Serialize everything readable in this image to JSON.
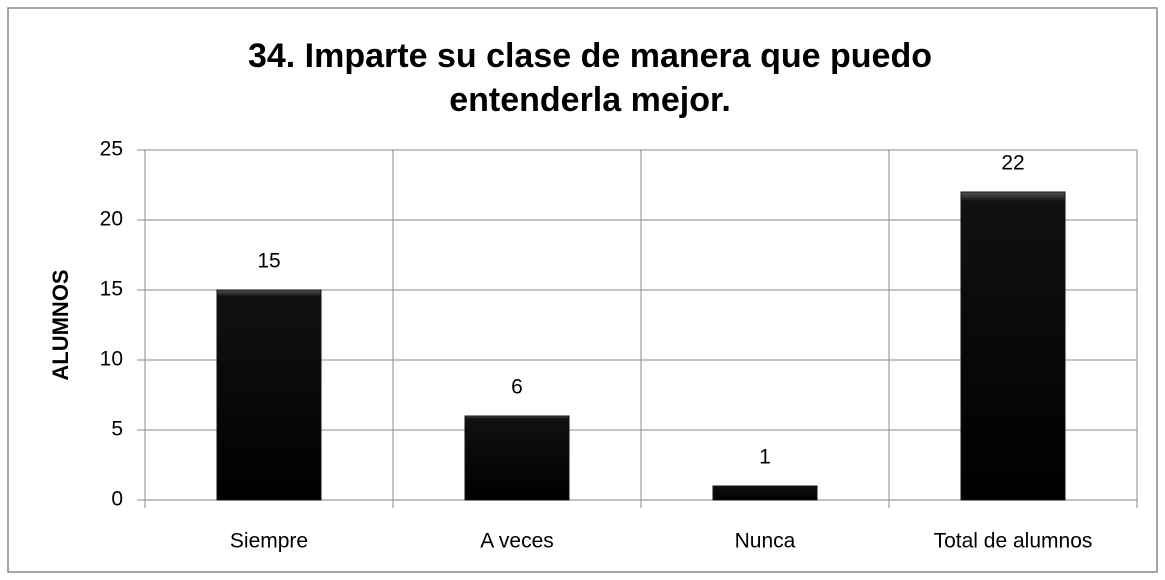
{
  "chart_data": {
    "type": "bar",
    "title": "34. Imparte su clase de manera que puedo entenderla mejor.",
    "y_label": "ALUMNOS",
    "categories": [
      "Siempre",
      "A veces",
      "Nunca",
      "Total de alumnos"
    ],
    "values": [
      15,
      6,
      1,
      22
    ],
    "color": "#111111",
    "ylim": [
      0,
      25
    ],
    "yticks": [
      0,
      5,
      10,
      15,
      20,
      25
    ],
    "grid": true
  }
}
